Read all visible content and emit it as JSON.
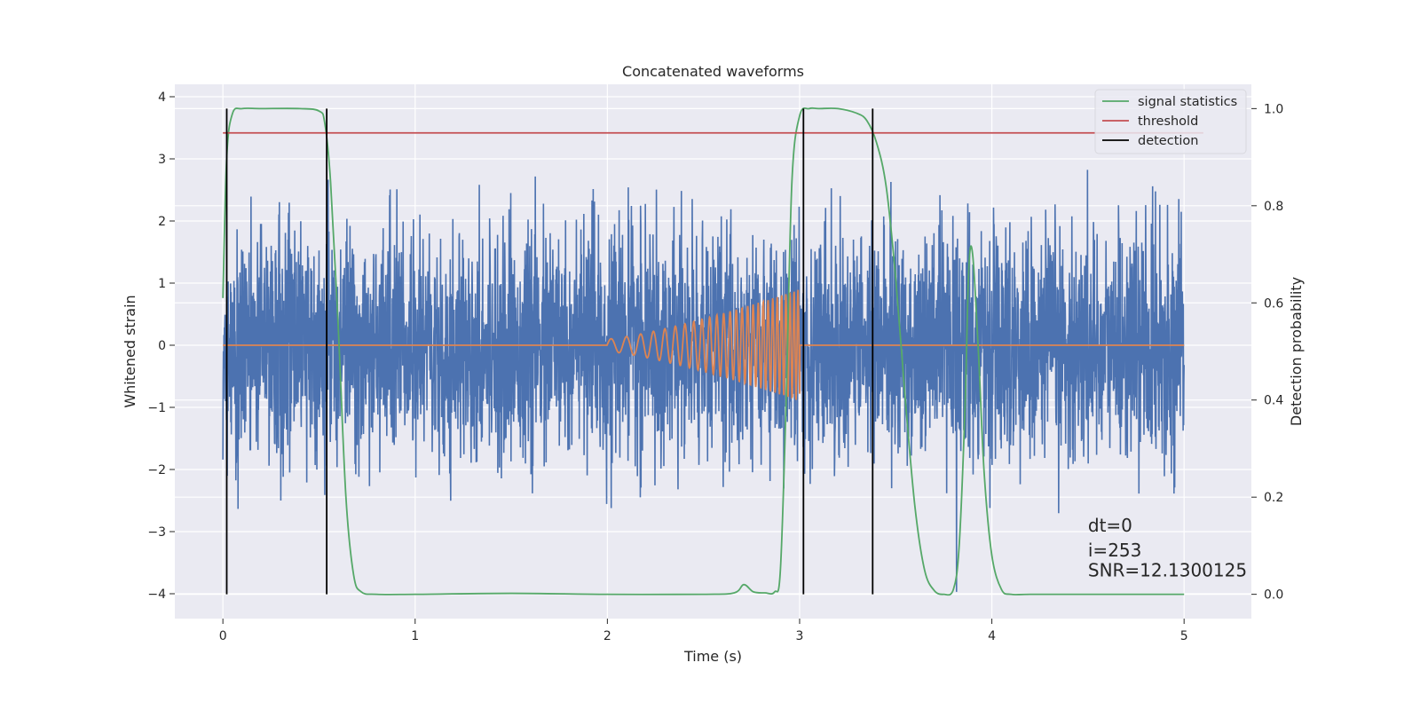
{
  "chart_data": {
    "type": "line",
    "title": "Concatenated waveforms",
    "xlabel": "Time (s)",
    "ylabel": "Whitened strain",
    "y2label": "Detection probability",
    "xlim": [
      -0.25,
      5.35
    ],
    "ylim": [
      -4.4,
      4.2
    ],
    "y2lim": [
      -0.05,
      1.05
    ],
    "x_ticks": [
      0,
      1,
      2,
      3,
      4,
      5
    ],
    "y_ticks": [
      -4,
      -3,
      -2,
      -1,
      0,
      1,
      2,
      3,
      4
    ],
    "y2_ticks": [
      0.0,
      0.2,
      0.4,
      0.6,
      0.8,
      1.0
    ],
    "y2_tick_labels": [
      "0.0",
      "0.2",
      "0.4",
      "0.6",
      "0.8",
      "1.0"
    ],
    "grid": true,
    "legend_position": "top-right",
    "series": [
      {
        "name": "",
        "axis": "left",
        "kind": "noise",
        "color": "#4c72b0",
        "x_range": [
          0,
          5
        ],
        "amplitude_std": 0.9,
        "min": -3.97,
        "max": 3.4
      },
      {
        "name": "",
        "axis": "left",
        "kind": "chirp",
        "color": "#dd8452",
        "x_range": [
          0,
          5
        ],
        "chirp_start": 2.0,
        "chirp_end": 3.0,
        "amplitude_start": 0.1,
        "amplitude_end": 0.9
      },
      {
        "name": "signal statistics",
        "axis": "right",
        "color": "#55a868",
        "x": [
          0,
          0.02,
          0.05,
          0.1,
          0.2,
          0.4,
          0.5,
          0.53,
          0.56,
          0.6,
          0.64,
          0.68,
          0.72,
          0.8,
          1.0,
          1.5,
          2.0,
          2.5,
          2.66,
          2.71,
          2.76,
          2.82,
          2.87,
          2.9,
          2.93,
          2.96,
          3.0,
          3.05,
          3.1,
          3.2,
          3.3,
          3.35,
          3.4,
          3.45,
          3.5,
          3.55,
          3.6,
          3.65,
          3.7,
          3.75,
          3.8,
          3.83,
          3.86,
          3.88,
          3.9,
          3.93,
          3.96,
          4.0,
          4.05,
          4.1,
          4.2,
          4.5,
          5.0
        ],
        "y": [
          0.61,
          0.9,
          0.99,
          1.0,
          1.0,
          1.0,
          0.995,
          0.97,
          0.85,
          0.55,
          0.2,
          0.04,
          0.005,
          0.0,
          0.0,
          0.002,
          0.0,
          0.0,
          0.003,
          0.02,
          0.005,
          0.003,
          0.005,
          0.05,
          0.4,
          0.85,
          0.985,
          1.0,
          1.0,
          1.0,
          0.99,
          0.975,
          0.93,
          0.84,
          0.65,
          0.4,
          0.18,
          0.05,
          0.008,
          0.0,
          0.01,
          0.1,
          0.38,
          0.67,
          0.7,
          0.5,
          0.25,
          0.08,
          0.01,
          0.0,
          0.0,
          0.0,
          0.0
        ]
      },
      {
        "name": "threshold",
        "axis": "right",
        "color": "#c44e52",
        "x": [
          0,
          5.1
        ],
        "y": [
          0.95,
          0.95
        ]
      },
      {
        "name": "detection",
        "axis": "right",
        "color": "#000000",
        "kind": "vlines",
        "x": [
          0.02,
          0.54,
          3.02,
          3.38
        ],
        "ymin": 0.0,
        "ymax": 1.0
      }
    ],
    "annotations": [
      {
        "text": "dt=0",
        "x": 4.5,
        "y": -3.0
      },
      {
        "text": "i=253",
        "x": 4.5,
        "y": -3.4
      },
      {
        "text": "SNR=12.1300125",
        "x": 4.5,
        "y": -3.72
      }
    ]
  }
}
